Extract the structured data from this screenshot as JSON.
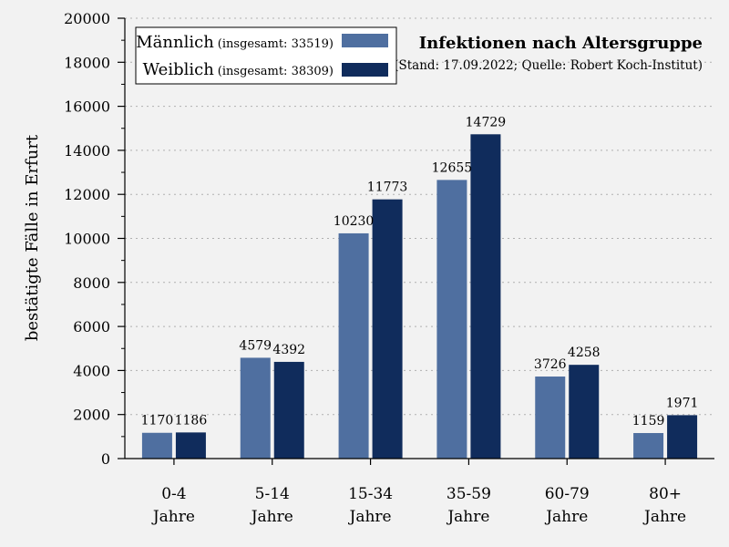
{
  "chart_data": {
    "type": "bar",
    "title": "Infektionen nach Altersgruppe",
    "subtitle": "(Stand: 17.09.2022; Quelle: Robert Koch-Institut)",
    "ylabel": "bestätigte Fälle in Erfurt",
    "xlabel": "",
    "ylim": [
      0,
      20000
    ],
    "yticks": [
      0,
      2000,
      4000,
      6000,
      8000,
      10000,
      12000,
      14000,
      16000,
      18000,
      20000
    ],
    "ytick_labels": [
      "0",
      "2000",
      "4000",
      "6000",
      "8000",
      "10000",
      "12000",
      "14000",
      "16000",
      "18000",
      "20000"
    ],
    "grid": true,
    "legend_position": "top-left",
    "categories": [
      {
        "line1": "0-4",
        "line2": "Jahre"
      },
      {
        "line1": "5-14",
        "line2": "Jahre"
      },
      {
        "line1": "15-34",
        "line2": "Jahre"
      },
      {
        "line1": "35-59",
        "line2": "Jahre"
      },
      {
        "line1": "60-79",
        "line2": "Jahre"
      },
      {
        "line1": "80+",
        "line2": "Jahre"
      }
    ],
    "series": [
      {
        "name": "Männlich",
        "total_label": "(insgesamt: 33519)",
        "color": "#4f6fa0",
        "values": [
          1170,
          4579,
          10230,
          12655,
          3726,
          1159
        ]
      },
      {
        "name": "Weiblich",
        "total_label": "(insgesamt: 38309)",
        "color": "#102c5c",
        "values": [
          1186,
          4392,
          11773,
          14729,
          4258,
          1971
        ]
      }
    ]
  }
}
